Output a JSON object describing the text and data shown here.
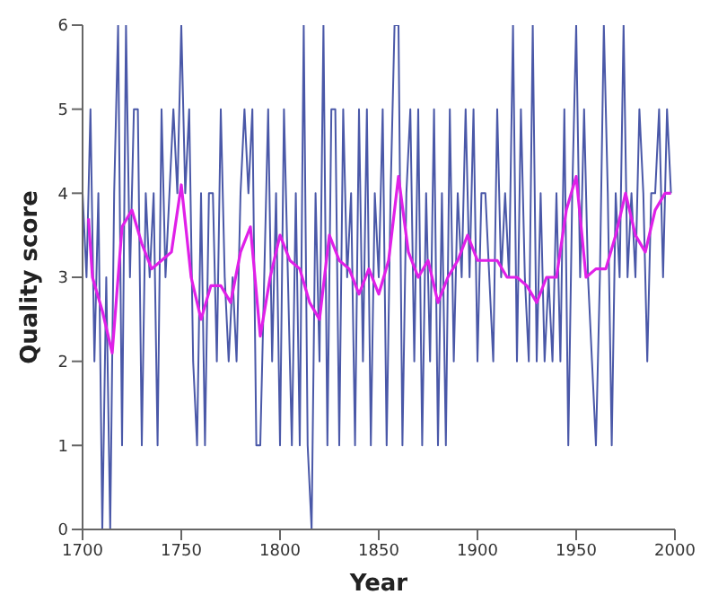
{
  "chart_data": {
    "type": "line",
    "xlabel": "Year",
    "ylabel": "Quality score",
    "xlim": [
      1700,
      2000
    ],
    "xticks": [
      1700,
      1750,
      1800,
      1850,
      1900,
      1950,
      2000
    ],
    "ylim": [
      0,
      6
    ],
    "yticks": [
      0,
      1,
      2,
      3,
      4,
      5,
      6
    ],
    "grid": false,
    "legend": false,
    "marker": "none",
    "line_style": "solid",
    "series": [
      {
        "color": "#4a58a8",
        "x": [
          1700,
          1702,
          1704,
          1706,
          1708,
          1710,
          1712,
          1714,
          1716,
          1718,
          1720,
          1722,
          1724,
          1726,
          1728,
          1730,
          1732,
          1734,
          1736,
          1738,
          1740,
          1742,
          1744,
          1746,
          1748,
          1750,
          1752,
          1754,
          1756,
          1758,
          1760,
          1762,
          1764,
          1766,
          1768,
          1770,
          1772,
          1774,
          1776,
          1778,
          1780,
          1782,
          1784,
          1786,
          1788,
          1790,
          1792,
          1794,
          1796,
          1798,
          1800,
          1802,
          1804,
          1806,
          1808,
          1810,
          1812,
          1814,
          1816,
          1818,
          1820,
          1822,
          1824,
          1826,
          1828,
          1830,
          1832,
          1834,
          1836,
          1838,
          1840,
          1842,
          1844,
          1846,
          1848,
          1850,
          1852,
          1854,
          1856,
          1858,
          1860,
          1862,
          1864,
          1866,
          1868,
          1870,
          1872,
          1874,
          1876,
          1878,
          1880,
          1882,
          1884,
          1886,
          1888,
          1890,
          1892,
          1894,
          1896,
          1898,
          1900,
          1902,
          1904,
          1906,
          1908,
          1910,
          1912,
          1914,
          1916,
          1918,
          1920,
          1922,
          1924,
          1926,
          1928,
          1930,
          1932,
          1934,
          1936,
          1938,
          1940,
          1942,
          1944,
          1946,
          1948,
          1950,
          1952,
          1954,
          1956,
          1958,
          1960,
          1962,
          1964,
          1966,
          1968,
          1970,
          1972,
          1974,
          1976,
          1978,
          1980,
          1982,
          1984,
          1986,
          1988,
          1990,
          1992,
          1994,
          1996,
          1998
        ],
        "values": [
          4,
          3,
          5,
          2,
          4,
          0,
          3,
          0,
          4,
          6,
          1,
          6,
          3,
          5,
          5,
          1,
          4,
          3,
          4,
          1,
          5,
          3,
          4,
          5,
          4,
          6,
          4,
          5,
          2,
          1,
          4,
          1,
          4,
          4,
          2,
          5,
          3,
          2,
          3,
          2,
          4,
          5,
          4,
          5,
          1,
          1,
          3,
          5,
          2,
          4,
          1,
          5,
          3,
          1,
          4,
          1,
          6,
          1,
          0,
          4,
          2,
          6,
          1,
          5,
          5,
          1,
          5,
          3,
          4,
          1,
          5,
          2,
          5,
          1,
          4,
          3,
          5,
          1,
          4,
          6,
          6,
          1,
          4,
          5,
          2,
          5,
          1,
          4,
          2,
          5,
          1,
          4,
          1,
          5,
          2,
          4,
          3,
          5,
          3,
          5,
          2,
          4,
          4,
          3,
          2,
          5,
          3,
          4,
          3,
          6,
          2,
          5,
          3,
          2,
          6,
          2,
          4,
          2,
          3,
          2,
          4,
          2,
          5,
          1,
          4,
          6,
          3,
          5,
          3,
          2,
          1,
          3,
          6,
          4,
          1,
          4,
          3,
          6,
          3,
          4,
          3,
          5,
          4,
          2,
          4,
          4,
          5,
          3,
          5,
          4
        ]
      },
      {
        "color": "#e020e8",
        "x": [
          1703,
          1705,
          1710,
          1715,
          1720,
          1725,
          1730,
          1735,
          1740,
          1745,
          1750,
          1755,
          1760,
          1765,
          1770,
          1775,
          1780,
          1785,
          1790,
          1795,
          1800,
          1805,
          1810,
          1815,
          1820,
          1825,
          1830,
          1835,
          1840,
          1845,
          1850,
          1855,
          1860,
          1865,
          1870,
          1875,
          1880,
          1885,
          1890,
          1895,
          1900,
          1905,
          1910,
          1915,
          1920,
          1925,
          1930,
          1935,
          1940,
          1945,
          1950,
          1955,
          1960,
          1965,
          1970,
          1975,
          1980,
          1985,
          1990,
          1995,
          1998
        ],
        "values": [
          3.7,
          3.0,
          2.6,
          2.1,
          3.6,
          3.8,
          3.4,
          3.1,
          3.2,
          3.3,
          4.1,
          3.0,
          2.5,
          2.9,
          2.9,
          2.7,
          3.3,
          3.6,
          2.3,
          3.0,
          3.5,
          3.2,
          3.1,
          2.7,
          2.5,
          3.5,
          3.2,
          3.1,
          2.8,
          3.1,
          2.8,
          3.2,
          4.2,
          3.3,
          3.0,
          3.2,
          2.7,
          3.0,
          3.2,
          3.5,
          3.2,
          3.2,
          3.2,
          3.0,
          3.0,
          2.9,
          2.7,
          3.0,
          3.0,
          3.8,
          4.2,
          3.0,
          3.1,
          3.1,
          3.5,
          4.0,
          3.5,
          3.3,
          3.8,
          4.0,
          4.0
        ]
      }
    ]
  }
}
